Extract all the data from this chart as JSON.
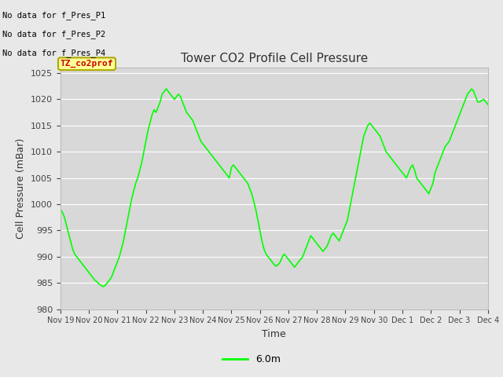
{
  "title": "Tower CO2 Profile Cell Pressure",
  "xlabel": "Time",
  "ylabel": "Cell Pressure (mBar)",
  "ylim": [
    980,
    1026
  ],
  "yticks": [
    980,
    985,
    990,
    995,
    1000,
    1005,
    1010,
    1015,
    1020,
    1025
  ],
  "line_color": "#00FF00",
  "line_width": 1.2,
  "bg_color": "#E8E8E8",
  "plot_bg_color": "#D8D8D8",
  "legend_label": "6.0m",
  "no_data_texts": [
    "No data for f_Pres_P1",
    "No data for f_Pres_P2",
    "No data for f_Pres_P4"
  ],
  "legend_box_color": "#FFFF99",
  "legend_box_border": "#AAAA00",
  "legend_text_color": "#CC0000",
  "legend_box_text": "TZ_co2prof",
  "x_tick_labels": [
    "Nov 19",
    "Nov 20",
    "Nov 21",
    "Nov 22",
    "Nov 23",
    "Nov 24",
    "Nov 25",
    "Nov 26",
    "Nov 27",
    "Nov 28",
    "Nov 29",
    "Nov 30",
    "Dec 1",
    "Dec 2",
    "Dec 3",
    "Dec 4"
  ],
  "x_values_days": [
    0,
    1,
    2,
    3,
    4,
    5,
    6,
    7,
    8,
    9,
    10,
    11,
    12,
    13,
    14,
    15
  ],
  "y_data": [
    999,
    998.5,
    997.5,
    996,
    994.5,
    993,
    991.5,
    990.5,
    990,
    989.5,
    989,
    988.5,
    988,
    987.5,
    987,
    986.5,
    986,
    985.5,
    985.2,
    984.8,
    984.5,
    984.3,
    984.5,
    985,
    985.5,
    986,
    987,
    988,
    989,
    990,
    991.5,
    993,
    995,
    997,
    999,
    1001,
    1002.5,
    1004,
    1005,
    1006.5,
    1008,
    1010,
    1012,
    1014,
    1015.5,
    1017,
    1018,
    1017.5,
    1018.5,
    1019.5,
    1021,
    1021.5,
    1022,
    1021.5,
    1021,
    1020.5,
    1020,
    1020.5,
    1021,
    1020.5,
    1019.5,
    1018.5,
    1017.5,
    1017,
    1016.5,
    1016,
    1015,
    1014,
    1013,
    1012,
    1011.5,
    1011,
    1010.5,
    1010,
    1009.5,
    1009,
    1008.5,
    1008,
    1007.5,
    1007,
    1006.5,
    1006,
    1005.5,
    1005,
    1007,
    1007.5,
    1007,
    1006.5,
    1006,
    1005.5,
    1005,
    1004.5,
    1004,
    1003,
    1002,
    1000.5,
    999,
    997,
    995,
    993,
    991.5,
    990.5,
    990,
    989.5,
    989,
    988.5,
    988.2,
    988.5,
    989,
    990,
    990.5,
    990,
    989.5,
    989,
    988.5,
    988,
    988.5,
    989,
    989.5,
    990,
    991,
    992,
    993,
    994,
    993.5,
    993,
    992.5,
    992,
    991.5,
    991,
    991.5,
    992,
    993,
    994,
    994.5,
    994,
    993.5,
    993,
    994,
    995,
    996,
    997,
    999,
    1001,
    1003,
    1005,
    1007,
    1009,
    1011,
    1013,
    1014,
    1015,
    1015.5,
    1015,
    1014.5,
    1014,
    1013.5,
    1013,
    1012,
    1011,
    1010,
    1009.5,
    1009,
    1008.5,
    1008,
    1007.5,
    1007,
    1006.5,
    1006,
    1005.5,
    1005,
    1006,
    1007,
    1007.5,
    1006.5,
    1005,
    1004.5,
    1004,
    1003.5,
    1003,
    1002.5,
    1002,
    1003,
    1004,
    1006,
    1007,
    1008,
    1009,
    1010,
    1011,
    1011.5,
    1012,
    1013,
    1014,
    1015,
    1016,
    1017,
    1018,
    1019,
    1020,
    1021,
    1021.5,
    1022,
    1021.5,
    1020.5,
    1019.5,
    1019.5,
    1019.8,
    1020,
    1019.5,
    1019
  ]
}
